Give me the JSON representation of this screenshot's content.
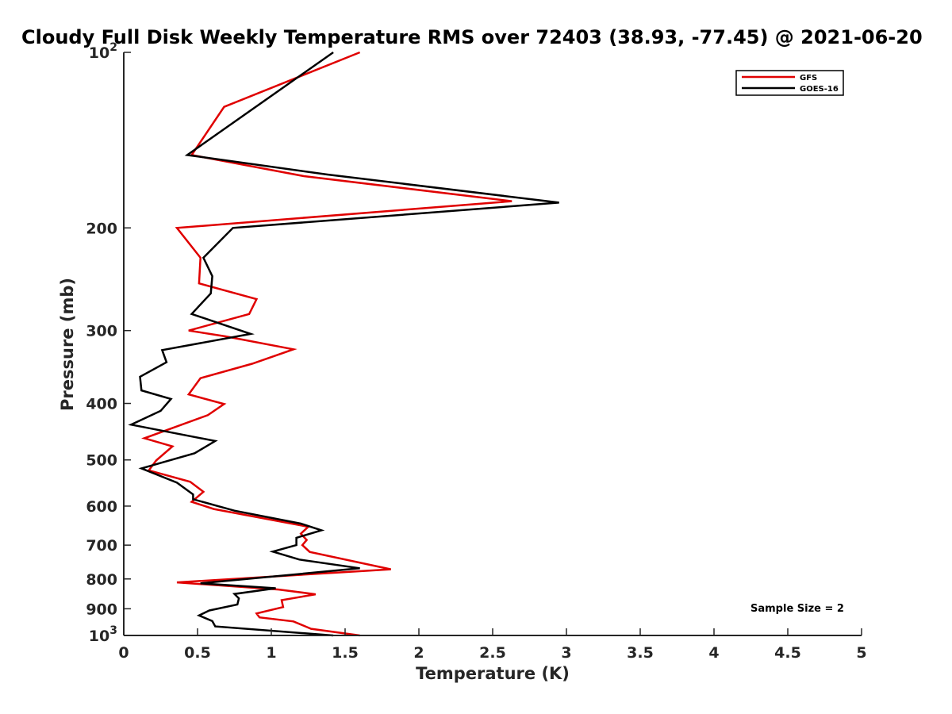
{
  "chart_data": {
    "type": "line",
    "title": "Cloudy Full Disk Weekly Temperature RMS over 72403 (38.93, -77.45) @ 2021-06-20",
    "xlabel": "Temperature (K)",
    "ylabel": "Pressure (mb)",
    "xlim": [
      0,
      5
    ],
    "ylim": [
      100,
      1000
    ],
    "yscale": "log",
    "y_reversed": true,
    "grid": false,
    "legend_position": "top-right",
    "x_ticks": [
      {
        "value": 0,
        "label": "0"
      },
      {
        "value": 0.5,
        "label": "0.5"
      },
      {
        "value": 1,
        "label": "1"
      },
      {
        "value": 1.5,
        "label": "1.5"
      },
      {
        "value": 2,
        "label": "2"
      },
      {
        "value": 2.5,
        "label": "2.5"
      },
      {
        "value": 3,
        "label": "3"
      },
      {
        "value": 3.5,
        "label": "3.5"
      },
      {
        "value": 4,
        "label": "4"
      },
      {
        "value": 4.5,
        "label": "4.5"
      },
      {
        "value": 5,
        "label": "5"
      }
    ],
    "y_ticks": [
      {
        "value": 100,
        "base": "10",
        "exp": "2"
      },
      {
        "value": 200,
        "label": "200"
      },
      {
        "value": 300,
        "label": "300"
      },
      {
        "value": 400,
        "label": "400"
      },
      {
        "value": 500,
        "label": "500"
      },
      {
        "value": 600,
        "label": "600"
      },
      {
        "value": 700,
        "label": "700"
      },
      {
        "value": 800,
        "label": "800"
      },
      {
        "value": 900,
        "label": "900"
      },
      {
        "value": 1000,
        "base": "10",
        "exp": "3"
      }
    ],
    "series": [
      {
        "name": "GFS",
        "color": "#e00000",
        "x": [
          1.6,
          0.68,
          0.46,
          1.22,
          2.63,
          0.36,
          0.52,
          0.51,
          0.9,
          0.85,
          0.44,
          0.69,
          1.15,
          0.87,
          0.52,
          0.44,
          0.68,
          0.57,
          0.14,
          0.33,
          0.22,
          0.17,
          0.45,
          0.54,
          0.46,
          0.61,
          1.25,
          1.2,
          1.24,
          1.21,
          1.26,
          1.81,
          0.36,
          1.05,
          1.3,
          1.07,
          1.08,
          0.9,
          0.92,
          1.15,
          1.27,
          1.6
        ],
        "y": [
          100,
          124,
          150,
          163,
          180,
          200,
          225,
          249,
          265,
          281,
          300,
          307,
          323,
          342,
          362,
          386,
          401,
          419,
          459,
          474,
          501,
          521,
          545,
          567,
          590,
          607,
          651,
          669,
          686,
          700,
          719,
          770,
          811,
          834,
          850,
          870,
          894,
          917,
          931,
          946,
          974,
          1000
        ]
      },
      {
        "name": "GOES-16",
        "color": "#000000",
        "x": [
          1.42,
          0.43,
          1.38,
          2.95,
          0.74,
          0.54,
          0.6,
          0.59,
          0.46,
          0.86,
          0.26,
          0.29,
          0.11,
          0.12,
          0.32,
          0.25,
          0.05,
          0.62,
          0.48,
          0.12,
          0.36,
          0.47,
          0.47,
          0.75,
          1.2,
          1.34,
          1.17,
          1.17,
          1.01,
          1.19,
          1.6,
          0.52,
          1.03,
          0.75,
          0.78,
          0.77,
          0.58,
          0.51,
          0.6,
          0.62,
          1.42
        ],
        "y": [
          100,
          150,
          162,
          181,
          200,
          225,
          242,
          259,
          281,
          304,
          324,
          340,
          360,
          380,
          393,
          412,
          435,
          464,
          487,
          517,
          547,
          573,
          584,
          611,
          643,
          660,
          680,
          700,
          718,
          741,
          767,
          814,
          830,
          849,
          864,
          885,
          906,
          924,
          945,
          965,
          1000
        ]
      }
    ],
    "annotations": [
      {
        "text": "Sample Size = 2",
        "position": "bottom-right"
      }
    ]
  }
}
